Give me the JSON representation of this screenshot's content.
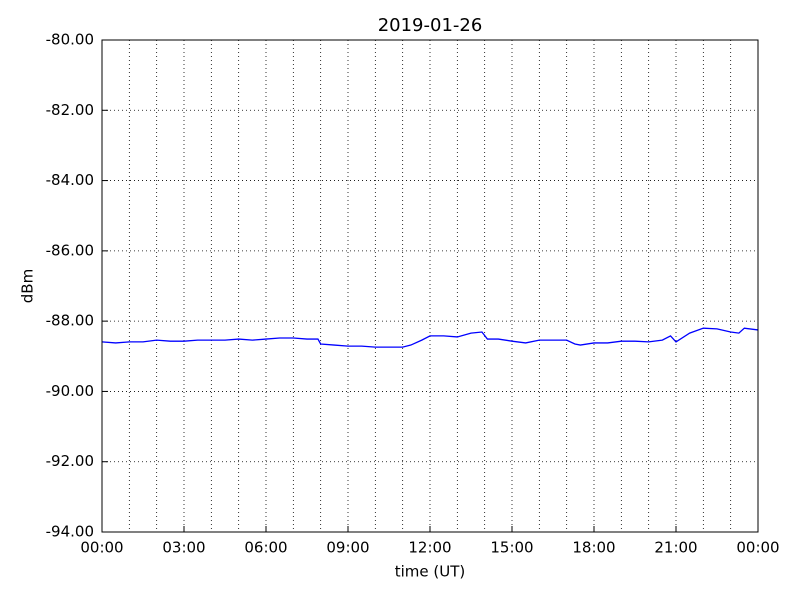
{
  "chart_data": {
    "type": "line",
    "title": "2019-01-26",
    "xlabel": "time (UT)",
    "ylabel": "dBm",
    "x": [
      0,
      0.5,
      1,
      1.5,
      2,
      2.5,
      3,
      3.5,
      4,
      4.5,
      5,
      5.5,
      6,
      6.5,
      7,
      7.5,
      7.9,
      8,
      8.5,
      9,
      9.5,
      10,
      10.5,
      11,
      11.3,
      11.7,
      12,
      12.5,
      13,
      13.5,
      13.9,
      14.1,
      14.5,
      15,
      15.5,
      16,
      16.5,
      17,
      17.3,
      17.5,
      18,
      18.5,
      19,
      19.5,
      20,
      20.5,
      20.8,
      21,
      21.5,
      22,
      22.5,
      23,
      23.3,
      23.5,
      24
    ],
    "series": [
      {
        "name": "dBm",
        "color": "#0000ff",
        "values": [
          -88.59,
          -88.62,
          -88.59,
          -88.59,
          -88.54,
          -88.57,
          -88.57,
          -88.54,
          -88.54,
          -88.54,
          -88.51,
          -88.54,
          -88.51,
          -88.48,
          -88.48,
          -88.51,
          -88.51,
          -88.65,
          -88.68,
          -88.71,
          -88.71,
          -88.74,
          -88.74,
          -88.74,
          -88.68,
          -88.54,
          -88.42,
          -88.42,
          -88.45,
          -88.34,
          -88.31,
          -88.51,
          -88.51,
          -88.57,
          -88.62,
          -88.54,
          -88.54,
          -88.54,
          -88.65,
          -88.68,
          -88.62,
          -88.62,
          -88.57,
          -88.57,
          -88.59,
          -88.54,
          -88.42,
          -88.59,
          -88.34,
          -88.2,
          -88.22,
          -88.31,
          -88.34,
          -88.2,
          -88.25
        ]
      }
    ],
    "xlim": [
      0,
      24
    ],
    "xticks": [
      {
        "value": 0,
        "label": "00:00"
      },
      {
        "value": 3,
        "label": "03:00"
      },
      {
        "value": 6,
        "label": "06:00"
      },
      {
        "value": 9,
        "label": "09:00"
      },
      {
        "value": 12,
        "label": "12:00"
      },
      {
        "value": 15,
        "label": "15:00"
      },
      {
        "value": 18,
        "label": "18:00"
      },
      {
        "value": 21,
        "label": "21:00"
      },
      {
        "value": 24,
        "label": "00:00"
      }
    ],
    "x_minor_ticks": [
      1,
      2,
      4,
      5,
      7,
      8,
      10,
      11,
      13,
      14,
      16,
      17,
      19,
      20,
      22,
      23
    ],
    "ylim": [
      -94,
      -80
    ],
    "yticks": [
      {
        "value": -94,
        "label": "-94.00"
      },
      {
        "value": -92,
        "label": "-92.00"
      },
      {
        "value": -90,
        "label": "-90.00"
      },
      {
        "value": -88,
        "label": "-88.00"
      },
      {
        "value": -86,
        "label": "-86.00"
      },
      {
        "value": -84,
        "label": "-84.00"
      },
      {
        "value": -82,
        "label": "-82.00"
      },
      {
        "value": -80,
        "label": "-80.00"
      }
    ],
    "grid": true
  }
}
